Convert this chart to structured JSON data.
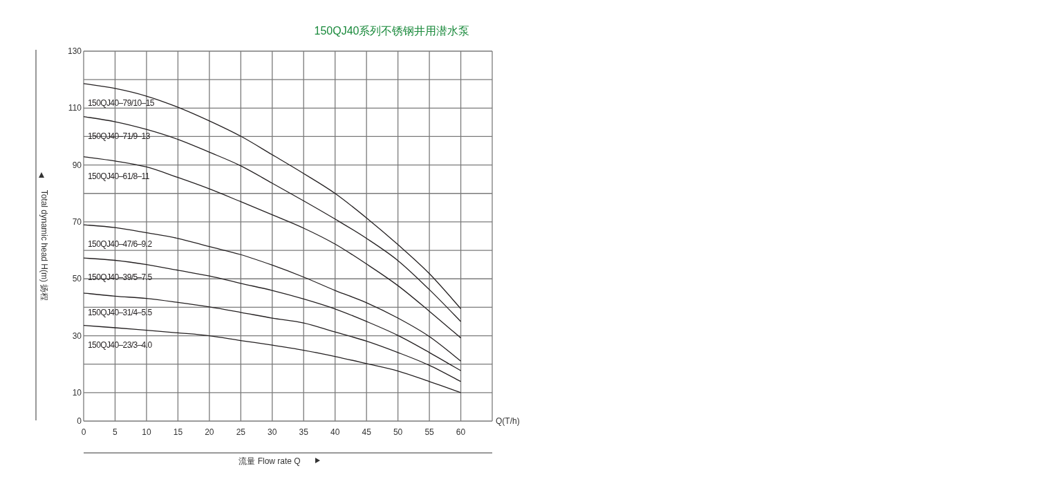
{
  "chart_data": {
    "type": "line",
    "title": "150QJ40系列不锈钢井用潜水泵",
    "xlabel": "流量 Flow rate Q",
    "ylabel": "Total dynamic head H(m) 扬程",
    "annotations": [
      "Q(T/h)"
    ],
    "x": [
      0,
      5,
      10,
      15,
      20,
      25,
      30,
      35,
      40,
      45,
      50,
      55,
      60
    ],
    "xlim": [
      0,
      65
    ],
    "xticks": [
      0,
      5,
      10,
      15,
      20,
      25,
      30,
      35,
      40,
      45,
      50,
      55,
      60,
      {
        "value": 65,
        "label": null
      }
    ],
    "ylim": [
      0,
      130
    ],
    "yticks": [
      0,
      10,
      {
        "value": 20,
        "label": null
      },
      30,
      {
        "value": 40,
        "label": null
      },
      50,
      {
        "value": 60,
        "label": null
      },
      70,
      {
        "value": 80,
        "label": null
      },
      90,
      {
        "value": 100,
        "label": null
      },
      110,
      {
        "value": 120,
        "label": null
      },
      130
    ],
    "grid": true,
    "legend": false,
    "series": [
      {
        "name": "150QJ40–79/10–15",
        "color": "#231f20",
        "values": [
          118.6,
          116.9,
          114.2,
          110.3,
          105.5,
          100.1,
          93.6,
          87,
          80,
          71.4,
          62,
          51.8,
          39.5
        ]
      },
      {
        "name": "150QJ40–71/9–13",
        "color": "#231f20",
        "values": [
          107,
          105.2,
          102.5,
          99,
          94.5,
          89.7,
          83.6,
          77.4,
          71,
          64.2,
          56.4,
          46.2,
          35
        ]
      },
      {
        "name": "150QJ40–61/8–11",
        "color": "#231f20",
        "values": [
          92.9,
          91.4,
          89.3,
          85.6,
          81.6,
          77.1,
          72.5,
          67.8,
          62.2,
          55.2,
          47.6,
          38.6,
          29.2
        ]
      },
      {
        "name": "150QJ40–47/6–9.2",
        "color": "#231f20",
        "values": [
          69,
          68,
          66.2,
          64.2,
          61.3,
          58.5,
          54.8,
          50.6,
          45.9,
          41.6,
          36.2,
          29.7,
          21.1
        ]
      },
      {
        "name": "150QJ40–39/5–7.5",
        "color": "#231f20",
        "values": [
          57.3,
          56.5,
          55,
          53,
          51,
          48.4,
          45.9,
          42.9,
          39.4,
          35,
          30.1,
          24.1,
          17.7
        ]
      },
      {
        "name": "150QJ40–31/4–5.5",
        "color": "#231f20",
        "values": [
          45,
          43.9,
          43.1,
          41.7,
          40.1,
          38.2,
          36.2,
          34.5,
          31.3,
          28.1,
          24.1,
          19.6,
          13.9
        ]
      },
      {
        "name": "150QJ40–23/3–4.0",
        "color": "#231f20",
        "values": [
          33.6,
          32.8,
          31.9,
          31,
          30,
          28.3,
          26.7,
          24.9,
          22.7,
          20.2,
          17.6,
          13.9,
          10
        ]
      }
    ]
  }
}
